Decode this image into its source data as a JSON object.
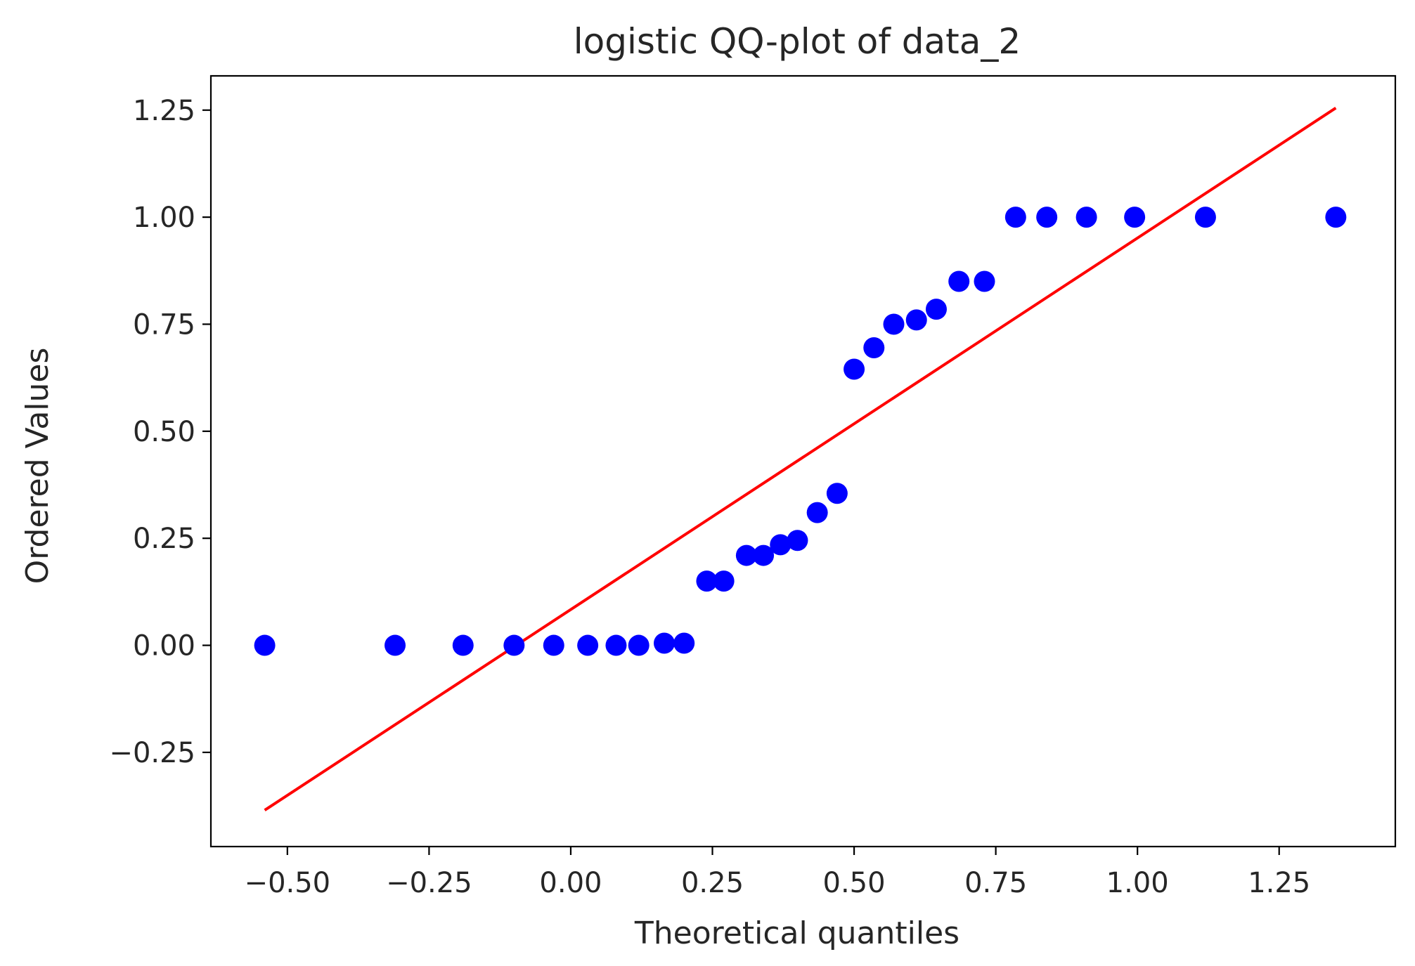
{
  "chart_data": {
    "type": "scatter",
    "title": "logistic QQ-plot of data_2",
    "xlabel": "Theoretical quantiles",
    "ylabel": "Ordered Values",
    "xlim": [
      -0.635,
      1.455
    ],
    "ylim": [
      -0.47,
      1.33
    ],
    "xticks": [
      -0.5,
      -0.25,
      0.0,
      0.25,
      0.5,
      0.75,
      1.0,
      1.25
    ],
    "xtick_labels": [
      "−0.50",
      "−0.25",
      "0.00",
      "0.25",
      "0.50",
      "0.75",
      "1.00",
      "1.25"
    ],
    "yticks": [
      -0.25,
      0.0,
      0.25,
      0.5,
      0.75,
      1.0,
      1.25
    ],
    "ytick_labels": [
      "−0.25",
      "0.00",
      "0.25",
      "0.50",
      "0.75",
      "1.00",
      "1.25"
    ],
    "grid": false,
    "series": [
      {
        "role": "points",
        "color": "#0000ff",
        "x": [
          -0.54,
          -0.31,
          -0.19,
          -0.1,
          -0.03,
          0.03,
          0.08,
          0.12,
          0.165,
          0.2,
          0.24,
          0.27,
          0.31,
          0.34,
          0.37,
          0.4,
          0.435,
          0.47,
          0.5,
          0.535,
          0.57,
          0.61,
          0.645,
          0.685,
          0.73,
          0.785,
          0.84,
          0.91,
          0.995,
          1.12,
          1.35
        ],
        "y": [
          0.0,
          0.0,
          0.0,
          0.0,
          0.0,
          0.0,
          0.0,
          0.0,
          0.005,
          0.005,
          0.15,
          0.15,
          0.21,
          0.21,
          0.235,
          0.245,
          0.31,
          0.355,
          0.645,
          0.695,
          0.75,
          0.76,
          0.785,
          0.85,
          0.85,
          1.0,
          1.0,
          1.0,
          1.0,
          1.0,
          1.0
        ]
      },
      {
        "role": "fit_line",
        "color": "#ff0000",
        "x": [
          -0.54,
          1.35
        ],
        "y": [
          -0.385,
          1.255
        ]
      }
    ]
  }
}
